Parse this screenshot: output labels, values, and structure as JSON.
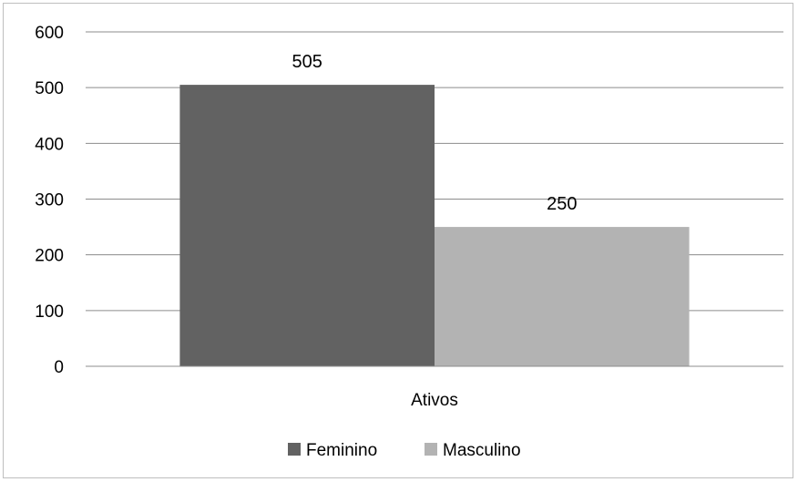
{
  "chart_data": {
    "type": "bar",
    "categories": [
      "Ativos"
    ],
    "series": [
      {
        "name": "Feminino",
        "values": [
          505
        ],
        "color": "#626262"
      },
      {
        "name": "Masculino",
        "values": [
          250
        ],
        "color": "#b3b3b3"
      }
    ],
    "title": "",
    "xlabel": "",
    "ylabel": "",
    "ylim": [
      0,
      600
    ],
    "yticks": [
      "0",
      "100",
      "200",
      "300",
      "400",
      "500",
      "600"
    ],
    "data_labels": [
      "505",
      "250"
    ],
    "grid": true,
    "legend_position": "bottom"
  }
}
